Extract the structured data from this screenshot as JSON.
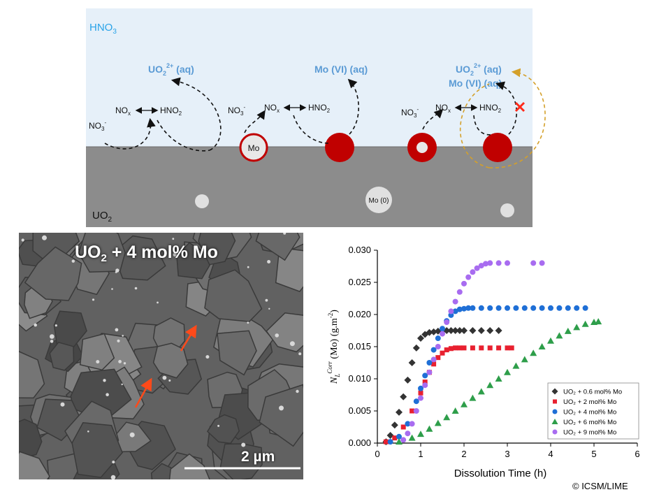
{
  "diagram": {
    "solution_label": "HNO",
    "solution_sub": "3",
    "solid_label": "UO",
    "solid_sub": "2",
    "uo2_aq": "UO",
    "uo2_aq_sub": "2",
    "uo2_aq_sup": "2+",
    "aq_suffix": " (aq)",
    "mo_vi_aq": "Mo (VI) (aq)",
    "nox": "NO",
    "nox_sub": "x",
    "hno2": "HNO",
    "hno2_sub": "2",
    "no3": "NO",
    "no3_sub": "3",
    "no3_sup": "-",
    "mo_particle": "Mo",
    "mo0_particle": "Mo (0)",
    "colors": {
      "solution": "#e6f0f9",
      "solid": "#8c8c8c",
      "oxide": "#c00000",
      "blue": "#5b9bd5",
      "gold": "#d4a02a",
      "block": "#ff2a1a"
    }
  },
  "sem": {
    "title_a": "UO",
    "title_sub": "2",
    "title_b": " + 4 mol% Mo",
    "scale_label": "2 µm",
    "arrow_color": "#ff4a1a"
  },
  "copyright": "© ICSM/LIME",
  "chart_data": {
    "type": "scatter",
    "xlabel": "Dissolution Time (h)",
    "ylabel_sym": "N",
    "ylabel_sub": "L",
    "ylabel_sup": "Corr",
    "ylabel_rest": " (Mo) (g.m",
    "ylabel_unit_sup": "-2",
    "ylabel_close": ")",
    "xlim": [
      0,
      6
    ],
    "ylim": [
      0,
      0.03
    ],
    "xticks": [
      "0",
      "1",
      "2",
      "3",
      "4",
      "5",
      "6"
    ],
    "yticks": [
      "0.000",
      "0.005",
      "0.010",
      "0.015",
      "0.020",
      "0.025",
      "0.030"
    ],
    "legend_position": "bottom-right",
    "series": [
      {
        "name": "UO₂ + 0.6 mol% Mo",
        "color": "#333333",
        "marker": "diamond",
        "x": [
          0.2,
          0.3,
          0.4,
          0.5,
          0.6,
          0.7,
          0.8,
          0.9,
          1.0,
          1.1,
          1.2,
          1.3,
          1.4,
          1.5,
          1.6,
          1.7,
          1.8,
          1.9,
          2.0,
          2.2,
          2.4,
          2.6,
          2.8
        ],
        "y": [
          0.0002,
          0.0012,
          0.0028,
          0.0048,
          0.0072,
          0.0098,
          0.0125,
          0.0148,
          0.0163,
          0.0169,
          0.0172,
          0.0173,
          0.0174,
          0.0174,
          0.0175,
          0.0175,
          0.0175,
          0.0175,
          0.0175,
          0.0175,
          0.0175,
          0.0175,
          0.0175
        ]
      },
      {
        "name": "UO₂ + 2 mol% Mo",
        "color": "#e8202f",
        "marker": "square",
        "x": [
          0.2,
          0.4,
          0.6,
          0.8,
          1.0,
          1.1,
          1.2,
          1.3,
          1.4,
          1.5,
          1.6,
          1.7,
          1.8,
          1.9,
          2.0,
          2.2,
          2.4,
          2.6,
          2.8,
          3.0,
          3.1
        ],
        "y": [
          0.0002,
          0.0008,
          0.0025,
          0.005,
          0.0078,
          0.0095,
          0.011,
          0.0123,
          0.0133,
          0.014,
          0.0145,
          0.0147,
          0.0148,
          0.0148,
          0.0148,
          0.0148,
          0.0148,
          0.0148,
          0.0148,
          0.0148,
          0.0148
        ]
      },
      {
        "name": "UO₂ + 4 mol% Mo",
        "color": "#1f6fd6",
        "marker": "circle",
        "x": [
          0.3,
          0.5,
          0.7,
          0.9,
          1.0,
          1.1,
          1.2,
          1.3,
          1.4,
          1.5,
          1.6,
          1.7,
          1.8,
          1.9,
          2.0,
          2.1,
          2.2,
          2.4,
          2.6,
          2.8,
          3.0,
          3.2,
          3.4,
          3.6,
          3.8,
          4.0,
          4.2,
          4.4,
          4.6,
          4.8
        ],
        "y": [
          0.0002,
          0.001,
          0.003,
          0.0065,
          0.0085,
          0.0105,
          0.0125,
          0.0145,
          0.0163,
          0.0178,
          0.019,
          0.0199,
          0.0205,
          0.0208,
          0.0209,
          0.021,
          0.021,
          0.021,
          0.021,
          0.021,
          0.021,
          0.021,
          0.021,
          0.021,
          0.021,
          0.021,
          0.021,
          0.021,
          0.021,
          0.021
        ]
      },
      {
        "name": "UO₂ + 6 mol% Mo",
        "color": "#2e9e4a",
        "marker": "triangle",
        "x": [
          0.5,
          0.8,
          1.0,
          1.2,
          1.4,
          1.6,
          1.8,
          2.0,
          2.2,
          2.4,
          2.6,
          2.8,
          3.0,
          3.2,
          3.4,
          3.6,
          3.8,
          4.0,
          4.2,
          4.4,
          4.6,
          4.8,
          5.0,
          5.1
        ],
        "y": [
          0.0002,
          0.0008,
          0.0014,
          0.0022,
          0.0031,
          0.004,
          0.005,
          0.006,
          0.007,
          0.008,
          0.009,
          0.01,
          0.011,
          0.012,
          0.013,
          0.014,
          0.015,
          0.0159,
          0.0167,
          0.0174,
          0.018,
          0.0185,
          0.0188,
          0.0189
        ]
      },
      {
        "name": "UO₂ + 9 mol% Mo",
        "color": "#a86cf0",
        "marker": "circle",
        "x": [
          0.6,
          0.7,
          0.8,
          0.9,
          1.0,
          1.1,
          1.2,
          1.3,
          1.4,
          1.5,
          1.6,
          1.7,
          1.8,
          1.9,
          2.0,
          2.1,
          2.2,
          2.3,
          2.4,
          2.5,
          2.6,
          2.8,
          3.0,
          3.6,
          3.8
        ],
        "y": [
          0.0005,
          0.0015,
          0.003,
          0.005,
          0.007,
          0.009,
          0.011,
          0.013,
          0.015,
          0.017,
          0.0188,
          0.0205,
          0.022,
          0.0235,
          0.0248,
          0.0258,
          0.0266,
          0.0272,
          0.0276,
          0.0279,
          0.028,
          0.028,
          0.028,
          0.028,
          0.028
        ]
      }
    ]
  }
}
